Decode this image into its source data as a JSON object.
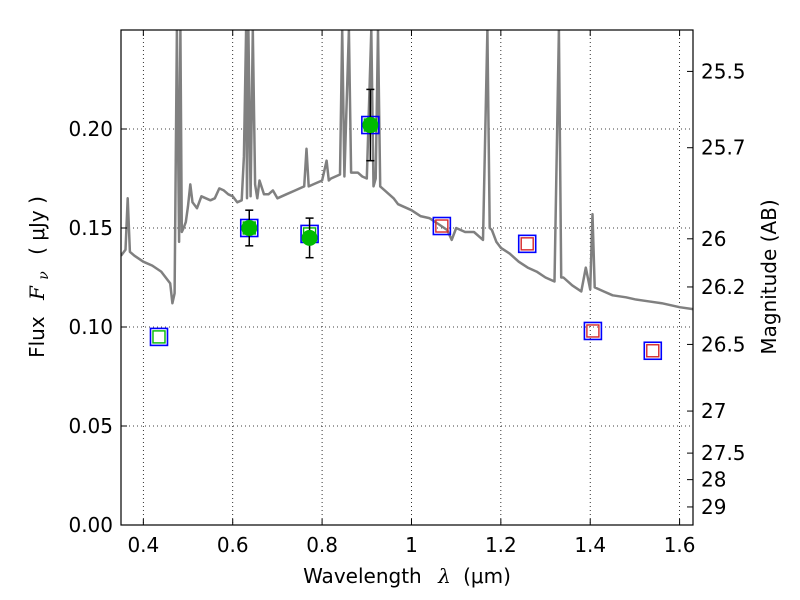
{
  "chart_data": {
    "type": "scatter",
    "xlabel": "Wavelength",
    "xlabel_symbol": "λ",
    "xlabel_unit": "(μm)",
    "ylabel": "Flux",
    "ylabel_symbol": "F",
    "ylabel_subscript": "ν",
    "ylabel_unit": "( μJy )",
    "y2label": "Magnitude (AB)",
    "xlim": [
      0.35,
      1.63
    ],
    "ylim": [
      0.0,
      0.25
    ],
    "grid": true,
    "x_ticks": [
      0.4,
      0.6,
      0.8,
      1.0,
      1.2,
      1.4,
      1.6
    ],
    "x_tick_labels": [
      "0.4",
      "0.6",
      "0.8",
      "1",
      "1.2",
      "1.4",
      "1.6"
    ],
    "y_ticks": [
      0.0,
      0.05,
      0.1,
      0.15,
      0.2
    ],
    "y_tick_labels": [
      "0.00",
      "0.05",
      "0.10",
      "0.15",
      "0.20"
    ],
    "y2_ticks": [
      {
        "label": "25.5",
        "mag": 25.5
      },
      {
        "label": "25.7",
        "mag": 25.7
      },
      {
        "label": "26",
        "mag": 26.0
      },
      {
        "label": "26.2",
        "mag": 26.2
      },
      {
        "label": "26.5",
        "mag": 26.5
      },
      {
        "label": "27",
        "mag": 27.0
      },
      {
        "label": "27.5",
        "mag": 27.5
      },
      {
        "label": "28",
        "mag": 28.0
      },
      {
        "label": "29",
        "mag": 29.0
      }
    ],
    "colors": {
      "model": "#808080",
      "observed": "#00bb00",
      "box_outer": "#0000ff",
      "box_inner_green": "#00bb00",
      "box_inner_red": "#d62728",
      "errorbar": "#000000",
      "grid": "#000000"
    },
    "model_spectrum": {
      "x": [
        0.35,
        0.36,
        0.365,
        0.37,
        0.38,
        0.4,
        0.42,
        0.44,
        0.45,
        0.46,
        0.465,
        0.47,
        0.475,
        0.48,
        0.483,
        0.486,
        0.49,
        0.495,
        0.5,
        0.505,
        0.51,
        0.52,
        0.53,
        0.54,
        0.55,
        0.56,
        0.57,
        0.58,
        0.59,
        0.6,
        0.61,
        0.62,
        0.625,
        0.63,
        0.632,
        0.635,
        0.64,
        0.645,
        0.65,
        0.655,
        0.66,
        0.67,
        0.68,
        0.69,
        0.7,
        0.72,
        0.74,
        0.76,
        0.765,
        0.77,
        0.78,
        0.8,
        0.81,
        0.815,
        0.82,
        0.84,
        0.845,
        0.85,
        0.86,
        0.865,
        0.87,
        0.88,
        0.89,
        0.9,
        0.91,
        0.915,
        0.92,
        0.925,
        0.93,
        0.95,
        0.96,
        0.97,
        0.98,
        1.0,
        1.02,
        1.04,
        1.06,
        1.08,
        1.09,
        1.1,
        1.12,
        1.14,
        1.16,
        1.17,
        1.175,
        1.18,
        1.19,
        1.2,
        1.22,
        1.24,
        1.26,
        1.28,
        1.3,
        1.32,
        1.33,
        1.335,
        1.34,
        1.36,
        1.38,
        1.39,
        1.4,
        1.405,
        1.41,
        1.43,
        1.45,
        1.48,
        1.5,
        1.53,
        1.56,
        1.6,
        1.63
      ],
      "y": [
        0.136,
        0.139,
        0.165,
        0.138,
        0.136,
        0.133,
        0.131,
        0.128,
        0.125,
        0.122,
        0.112,
        0.117,
        0.25,
        0.143,
        0.25,
        0.148,
        0.15,
        0.153,
        0.161,
        0.172,
        0.163,
        0.16,
        0.166,
        0.165,
        0.164,
        0.165,
        0.17,
        0.169,
        0.167,
        0.166,
        0.163,
        0.164,
        0.186,
        0.25,
        0.165,
        0.25,
        0.166,
        0.25,
        0.172,
        0.165,
        0.174,
        0.167,
        0.167,
        0.169,
        0.165,
        0.167,
        0.169,
        0.171,
        0.19,
        0.171,
        0.172,
        0.174,
        0.184,
        0.174,
        0.175,
        0.177,
        0.25,
        0.176,
        0.25,
        0.178,
        0.178,
        0.178,
        0.176,
        0.175,
        0.25,
        0.171,
        0.175,
        0.25,
        0.171,
        0.167,
        0.165,
        0.162,
        0.161,
        0.159,
        0.156,
        0.155,
        0.152,
        0.149,
        0.144,
        0.15,
        0.148,
        0.148,
        0.144,
        0.25,
        0.15,
        0.149,
        0.143,
        0.14,
        0.137,
        0.133,
        0.13,
        0.128,
        0.125,
        0.123,
        0.25,
        0.125,
        0.125,
        0.121,
        0.118,
        0.13,
        0.119,
        0.157,
        0.12,
        0.118,
        0.116,
        0.115,
        0.114,
        0.113,
        0.112,
        0.11,
        0.109
      ]
    },
    "observed": [
      {
        "x": 0.637,
        "y": 0.15,
        "err": 0.009
      },
      {
        "x": 0.772,
        "y": 0.145,
        "err": 0.01
      },
      {
        "x": 0.908,
        "y": 0.202,
        "err": 0.018
      }
    ],
    "model_fluxes": [
      {
        "x": 0.435,
        "y": 0.095,
        "inner": "green"
      },
      {
        "x": 0.637,
        "y": 0.15,
        "inner": "green"
      },
      {
        "x": 0.772,
        "y": 0.147,
        "inner": "green"
      },
      {
        "x": 0.908,
        "y": 0.202,
        "inner": "green"
      },
      {
        "x": 1.068,
        "y": 0.151,
        "inner": "red"
      },
      {
        "x": 1.259,
        "y": 0.142,
        "inner": "red"
      },
      {
        "x": 1.406,
        "y": 0.098,
        "inner": "red"
      },
      {
        "x": 1.54,
        "y": 0.088,
        "inner": "red"
      }
    ]
  }
}
